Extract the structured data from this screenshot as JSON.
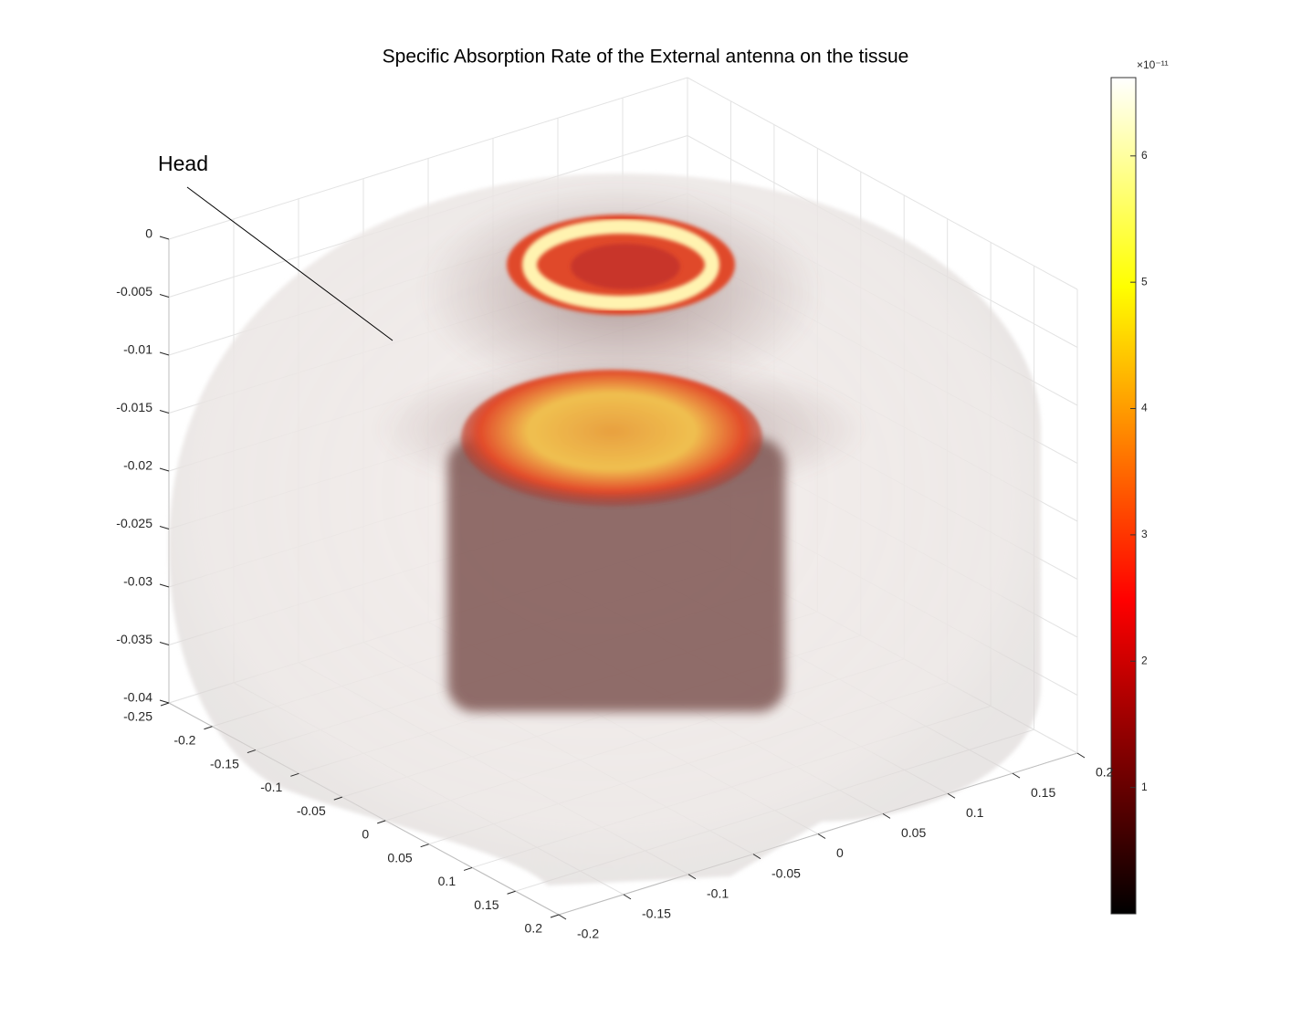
{
  "chart_data": {
    "type": "volume",
    "title": "Specific Absorption Rate of the External antenna on the tissue",
    "annotation": "Head",
    "zlim": [
      -0.04,
      0
    ],
    "zticks": [
      0,
      -0.005,
      -0.01,
      -0.015,
      -0.02,
      -0.025,
      -0.03,
      -0.035,
      -0.04
    ],
    "xlim": [
      -0.25,
      0.2
    ],
    "xticks": [
      0.2,
      0.15,
      0.1,
      0.05,
      0,
      -0.05,
      -0.1,
      -0.15,
      -0.2,
      -0.25
    ],
    "ylim": [
      -0.2,
      0.2
    ],
    "yticks": [
      -0.2,
      -0.15,
      -0.1,
      -0.05,
      0,
      0.05,
      0.1,
      0.15,
      0.2
    ],
    "grid": true,
    "colorbar": {
      "colormap": "hot",
      "lim": [
        0,
        6.62
      ],
      "ticks": [
        1,
        2,
        3,
        4,
        5,
        6
      ],
      "exponent_label": "×10⁻¹¹"
    }
  }
}
